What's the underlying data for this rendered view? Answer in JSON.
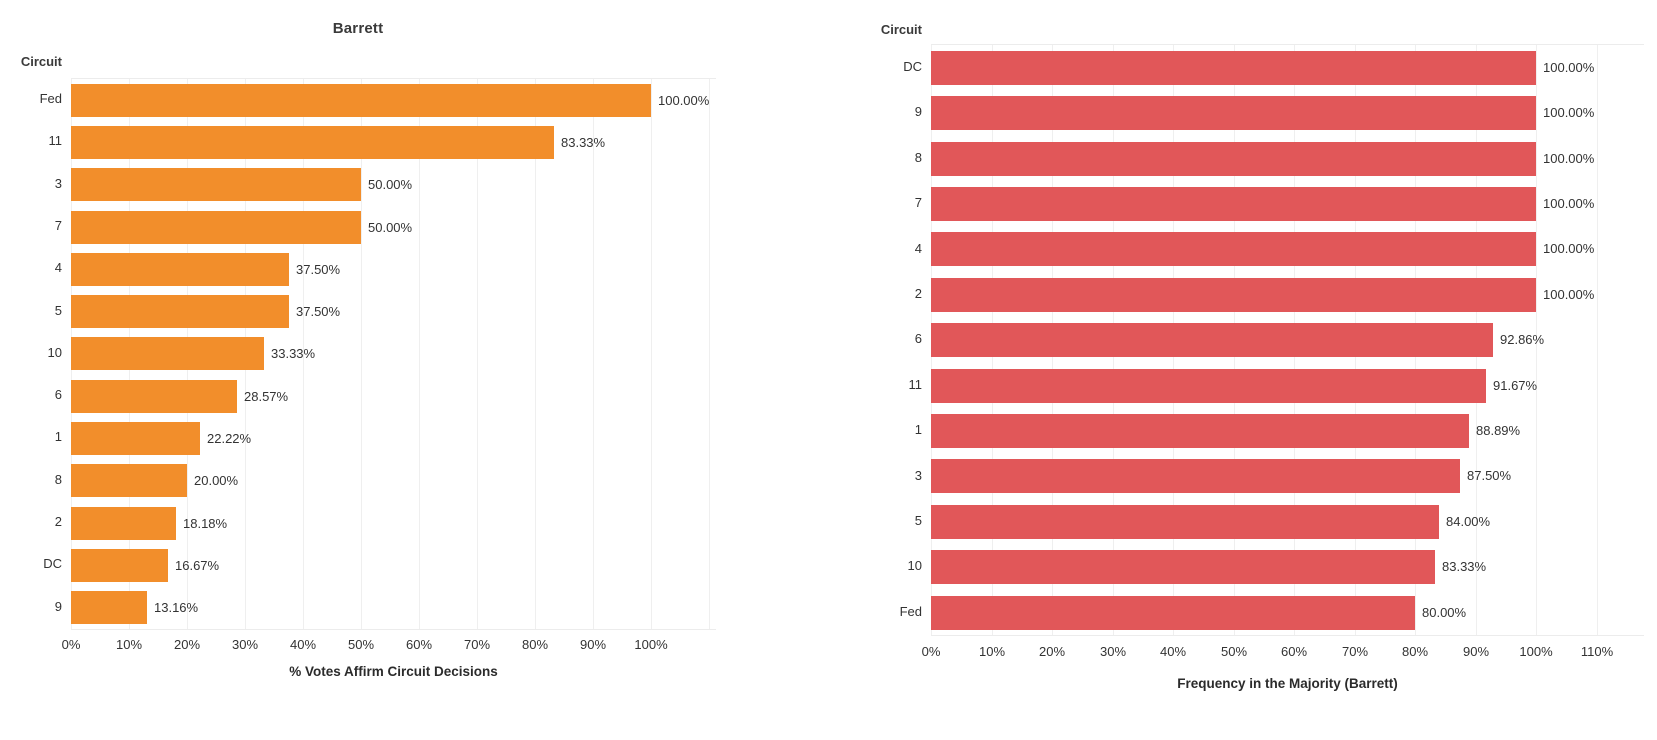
{
  "page": {
    "background": "#ffffff"
  },
  "chart_data": [
    {
      "type": "bar",
      "orientation": "horizontal",
      "title": "Barrett",
      "col_header": "Circuit",
      "xlabel": "% Votes Affirm Circuit Decisions",
      "categories": [
        "Fed",
        "11",
        "3",
        "7",
        "4",
        "5",
        "10",
        "6",
        "1",
        "8",
        "2",
        "DC",
        "9"
      ],
      "values": [
        100.0,
        83.33,
        50.0,
        50.0,
        37.5,
        37.5,
        33.33,
        28.57,
        22.22,
        20.0,
        18.18,
        16.67,
        13.16
      ],
      "value_labels": [
        "100.00%",
        "83.33%",
        "50.00%",
        "50.00%",
        "37.50%",
        "37.50%",
        "33.33%",
        "28.57%",
        "22.22%",
        "20.00%",
        "18.18%",
        "16.67%",
        "13.16%"
      ],
      "tick_values": [
        0,
        10,
        20,
        30,
        40,
        50,
        60,
        70,
        80,
        90,
        100
      ],
      "tick_labels": [
        "0%",
        "10%",
        "20%",
        "30%",
        "40%",
        "50%",
        "60%",
        "70%",
        "80%",
        "90%",
        "100%"
      ],
      "xlim": [
        0,
        111
      ],
      "grid": true,
      "legend": "none",
      "bar_color": "#F28E2B"
    },
    {
      "type": "bar",
      "orientation": "horizontal",
      "title": "",
      "col_header": "Circuit",
      "xlabel": "Frequency in the Majority (Barrett)",
      "categories": [
        "DC",
        "9",
        "8",
        "7",
        "4",
        "2",
        "6",
        "11",
        "1",
        "3",
        "5",
        "10",
        "Fed"
      ],
      "values": [
        100.0,
        100.0,
        100.0,
        100.0,
        100.0,
        100.0,
        92.86,
        91.67,
        88.89,
        87.5,
        84.0,
        83.33,
        80.0
      ],
      "value_labels": [
        "100.00%",
        "100.00%",
        "100.00%",
        "100.00%",
        "100.00%",
        "100.00%",
        "92.86%",
        "91.67%",
        "88.89%",
        "87.50%",
        "84.00%",
        "83.33%",
        "80.00%"
      ],
      "tick_values": [
        0,
        10,
        20,
        30,
        40,
        50,
        60,
        70,
        80,
        90,
        100,
        110
      ],
      "tick_labels": [
        "0%",
        "10%",
        "20%",
        "30%",
        "40%",
        "50%",
        "60%",
        "70%",
        "80%",
        "90%",
        "100%",
        "110%"
      ],
      "xlim": [
        0,
        118
      ],
      "grid": true,
      "legend": "none",
      "bar_color": "#E15759"
    }
  ]
}
